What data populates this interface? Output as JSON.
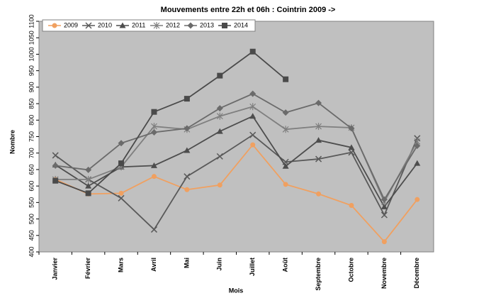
{
  "chart_data": {
    "type": "line",
    "title": "Mouvements entre 22h et 06h : Cointrin 2009 ->",
    "x_label": "Mois",
    "y_label": "Nombre",
    "categories": [
      "Janvier",
      "Février",
      "Mars",
      "Avril",
      "Mai",
      "Juin",
      "Juillet",
      "Août",
      "Septembre",
      "Octobre",
      "Novembre",
      "Décembre"
    ],
    "series": [
      {
        "name": "2009",
        "color": "#f0a060",
        "marker": "circle",
        "values": [
          620,
          576,
          578,
          629,
          589,
          603,
          725,
          605,
          576,
          541,
          431,
          559
        ]
      },
      {
        "name": "2010",
        "color": "#595959",
        "marker": "x",
        "values": [
          693,
          620,
          563,
          468,
          629,
          690,
          755,
          673,
          682,
          702,
          512,
          745
        ]
      },
      {
        "name": "2011",
        "color": "#4d4d4d",
        "marker": "triangle",
        "values": [
          664,
          600,
          658,
          662,
          708,
          766,
          812,
          660,
          739,
          717,
          537,
          669
        ]
      },
      {
        "name": "2012",
        "color": "#7f7f7f",
        "marker": "star",
        "values": [
          620,
          620,
          658,
          781,
          772,
          812,
          841,
          772,
          781,
          777,
          552,
          735
        ]
      },
      {
        "name": "2013",
        "color": "#6b6b6b",
        "marker": "diamond",
        "values": [
          662,
          649,
          730,
          763,
          775,
          836,
          880,
          823,
          852,
          775,
          559,
          722
        ]
      },
      {
        "name": "2014",
        "color": "#4a4a4a",
        "marker": "square",
        "values": [
          616,
          578,
          669,
          825,
          865,
          935,
          1008,
          924,
          null,
          null,
          null,
          null
        ]
      }
    ],
    "ylim": [
      400,
      1100
    ],
    "yticks": [
      400,
      450,
      500,
      550,
      600,
      650,
      700,
      750,
      800,
      850,
      900,
      950,
      1000,
      1050,
      1100
    ],
    "grid": false,
    "legend": "top"
  }
}
